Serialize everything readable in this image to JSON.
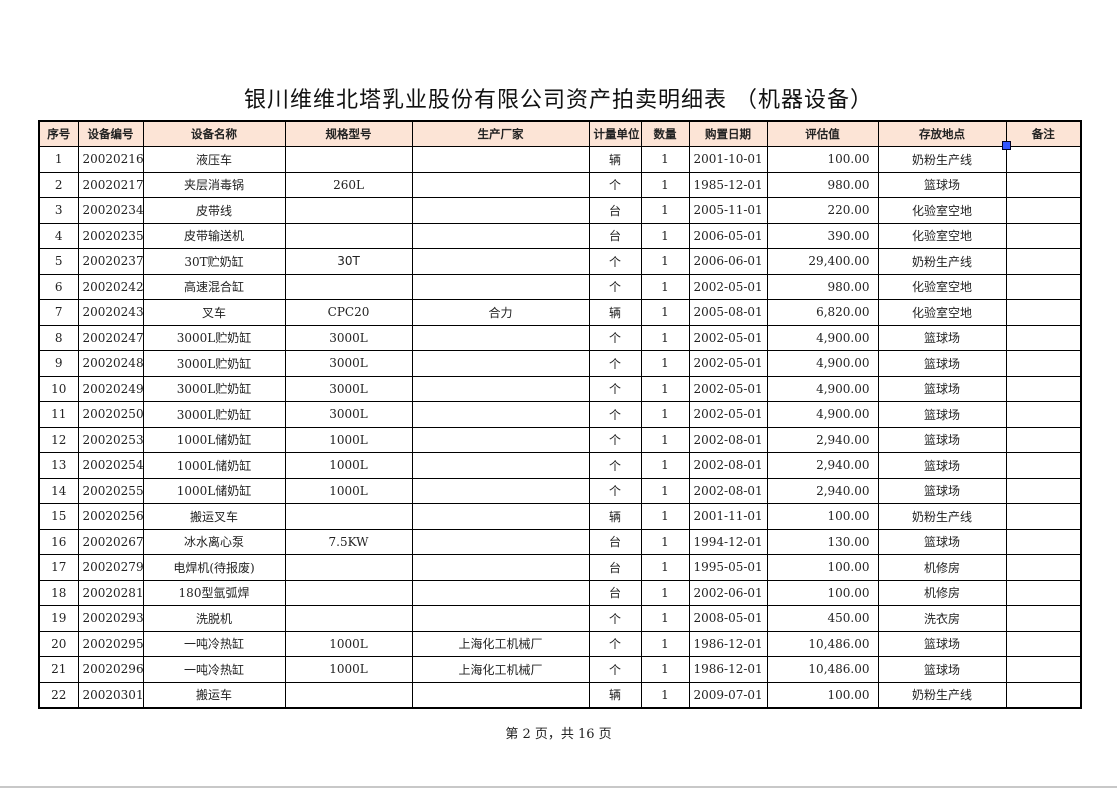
{
  "title": "银川维维北塔乳业股份有限公司资产拍卖明细表 （机器设备）",
  "columns": [
    "序号",
    "设备编号",
    "设备名称",
    "规格型号",
    "生产厂家",
    "计量单位",
    "数量",
    "购置日期",
    "评估值",
    "存放地点",
    "备注"
  ],
  "rows": [
    [
      "1",
      "20020216",
      "液压车",
      "",
      "",
      "辆",
      "1",
      "2001-10-01",
      "100.00",
      "奶粉生产线",
      ""
    ],
    [
      "2",
      "20020217",
      "夹层消毒锅",
      "260L",
      "",
      "个",
      "1",
      "1985-12-01",
      "980.00",
      "篮球场",
      ""
    ],
    [
      "3",
      "20020234",
      "皮带线",
      "",
      "",
      "台",
      "1",
      "2005-11-01",
      "220.00",
      "化验室空地",
      ""
    ],
    [
      "4",
      "20020235",
      "皮带输送机",
      "",
      "",
      "台",
      "1",
      "2006-05-01",
      "390.00",
      "化验室空地",
      ""
    ],
    [
      "5",
      "20020237",
      "30T贮奶缸",
      "30T",
      "",
      "个",
      "1",
      "2006-06-01",
      "29,400.00",
      "奶粉生产线",
      ""
    ],
    [
      "6",
      "20020242",
      "高速混合缸",
      "",
      "",
      "个",
      "1",
      "2002-05-01",
      "980.00",
      "化验室空地",
      ""
    ],
    [
      "7",
      "20020243",
      "叉车",
      "CPC20",
      "合力",
      "辆",
      "1",
      "2005-08-01",
      "6,820.00",
      "化验室空地",
      ""
    ],
    [
      "8",
      "20020247",
      "3000L贮奶缸",
      "3000L",
      "",
      "个",
      "1",
      "2002-05-01",
      "4,900.00",
      "篮球场",
      ""
    ],
    [
      "9",
      "20020248",
      "3000L贮奶缸",
      "3000L",
      "",
      "个",
      "1",
      "2002-05-01",
      "4,900.00",
      "篮球场",
      ""
    ],
    [
      "10",
      "20020249",
      "3000L贮奶缸",
      "3000L",
      "",
      "个",
      "1",
      "2002-05-01",
      "4,900.00",
      "篮球场",
      ""
    ],
    [
      "11",
      "20020250",
      "3000L贮奶缸",
      "3000L",
      "",
      "个",
      "1",
      "2002-05-01",
      "4,900.00",
      "篮球场",
      ""
    ],
    [
      "12",
      "20020253",
      "1000L储奶缸",
      "1000L",
      "",
      "个",
      "1",
      "2002-08-01",
      "2,940.00",
      "篮球场",
      ""
    ],
    [
      "13",
      "20020254",
      "1000L储奶缸",
      "1000L",
      "",
      "个",
      "1",
      "2002-08-01",
      "2,940.00",
      "篮球场",
      ""
    ],
    [
      "14",
      "20020255",
      "1000L储奶缸",
      "1000L",
      "",
      "个",
      "1",
      "2002-08-01",
      "2,940.00",
      "篮球场",
      ""
    ],
    [
      "15",
      "20020256",
      "搬运叉车",
      "",
      "",
      "辆",
      "1",
      "2001-11-01",
      "100.00",
      "奶粉生产线",
      ""
    ],
    [
      "16",
      "20020267",
      "冰水离心泵",
      "7.5KW",
      "",
      "台",
      "1",
      "1994-12-01",
      "130.00",
      "篮球场",
      ""
    ],
    [
      "17",
      "20020279",
      "电焊机(待报废)",
      "",
      "",
      "台",
      "1",
      "1995-05-01",
      "100.00",
      "机修房",
      ""
    ],
    [
      "18",
      "20020281",
      "180型氩弧焊",
      "",
      "",
      "台",
      "1",
      "2002-06-01",
      "100.00",
      "机修房",
      ""
    ],
    [
      "19",
      "20020293",
      "洗脱机",
      "",
      "",
      "个",
      "1",
      "2008-05-01",
      "450.00",
      "洗衣房",
      ""
    ],
    [
      "20",
      "20020295",
      "一吨冷热缸",
      "1000L",
      "上海化工机械厂",
      "个",
      "1",
      "1986-12-01",
      "10,486.00",
      "篮球场",
      ""
    ],
    [
      "21",
      "20020296",
      "一吨冷热缸",
      "1000L",
      "上海化工机械厂",
      "个",
      "1",
      "1986-12-01",
      "10,486.00",
      "篮球场",
      ""
    ],
    [
      "22",
      "20020301",
      "搬运车",
      "",
      "",
      "辆",
      "1",
      "2009-07-01",
      "100.00",
      "奶粉生产线",
      ""
    ]
  ],
  "footer": "第 2 页，共 16 页",
  "colors": {
    "header_bg": "#fce4d6",
    "selection_handle": "#3355ff"
  }
}
